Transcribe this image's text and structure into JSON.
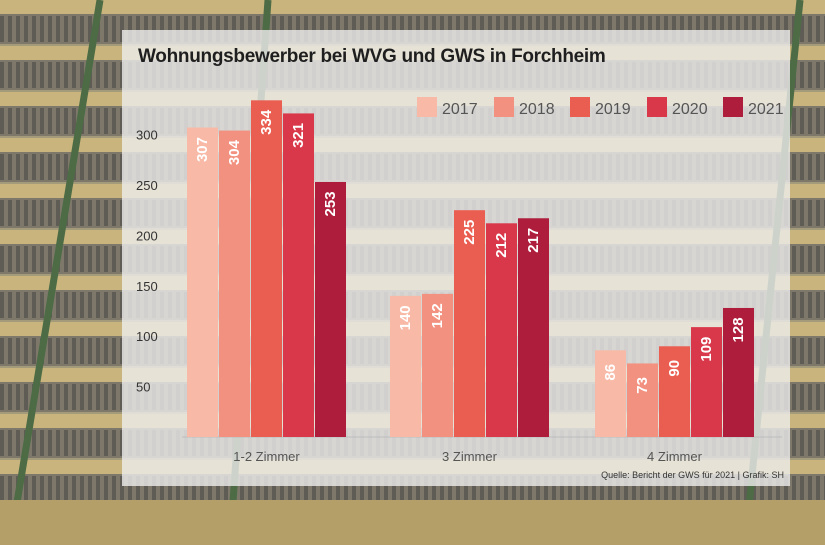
{
  "colors": {
    "bars": [
      "#f8b9a6",
      "#f2917f",
      "#ea5e51",
      "#d8384a",
      "#ae1e3c"
    ],
    "facade": "#a49b7b",
    "balcony": "#c8b47c",
    "rail": "#4d6b45"
  },
  "title": "Wohnungsbewerber bei WVG und GWS in Forchheim",
  "source": "Quelle: Bericht der GWS für 2021 | Grafik: SH",
  "chart_data": {
    "type": "bar",
    "title": "Wohnungsbewerber bei WVG und GWS in Forchheim",
    "categories": [
      "1-2 Zimmer",
      "3 Zimmer",
      "4 Zimmer"
    ],
    "series": [
      {
        "name": "2017",
        "values": [
          307,
          140,
          86
        ]
      },
      {
        "name": "2018",
        "values": [
          304,
          142,
          73
        ]
      },
      {
        "name": "2019",
        "values": [
          334,
          225,
          90
        ]
      },
      {
        "name": "2020",
        "values": [
          321,
          212,
          109
        ]
      },
      {
        "name": "2021",
        "values": [
          253,
          217,
          128
        ]
      }
    ],
    "yticks": [
      50,
      100,
      150,
      200,
      250,
      300
    ],
    "ylim": [
      0,
      340
    ],
    "xlabel": "",
    "ylabel": "",
    "grid": false,
    "legend_position": "top-right",
    "data_labels": true
  }
}
